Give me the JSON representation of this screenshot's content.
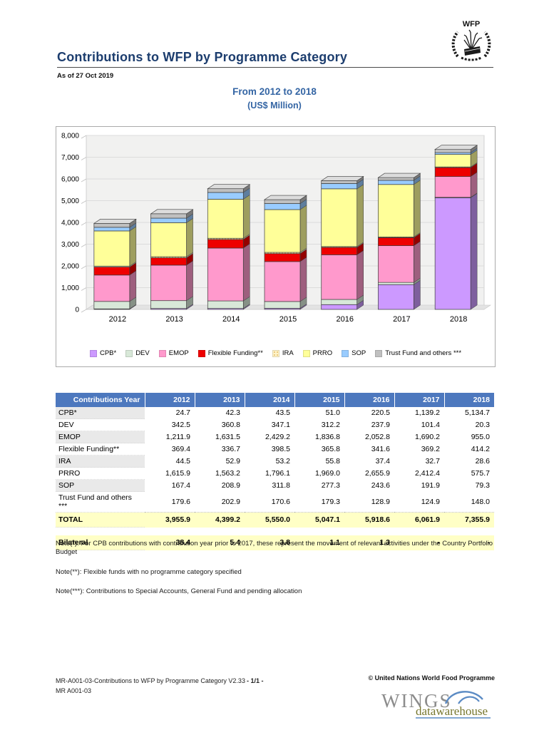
{
  "header": {
    "title": "Contributions to WFP by Programme Category",
    "as_of": "As of 27 Oct 2019",
    "subtitle_line1": "From 2012 to 2018",
    "subtitle_line2": "(US$ Million)",
    "logo_text": "WFP"
  },
  "chart_data": {
    "type": "bar",
    "stacked": true,
    "title": "Contributions to WFP by Programme Category, From 2012 to 2018 (US$ Million)",
    "categories": [
      "2012",
      "2013",
      "2014",
      "2015",
      "2016",
      "2017",
      "2018"
    ],
    "series": [
      {
        "name": "CPB*",
        "color": "#CC99FF",
        "values": [
          24.7,
          42.3,
          43.5,
          51.0,
          220.5,
          1139.2,
          5134.7
        ]
      },
      {
        "name": "DEV",
        "color": "#D8E8D8",
        "values": [
          342.5,
          360.8,
          347.1,
          312.2,
          237.9,
          101.4,
          20.3
        ]
      },
      {
        "name": "EMOP",
        "color": "#FF99CC",
        "values": [
          1211.9,
          1631.5,
          2429.2,
          1836.8,
          2052.8,
          1690.2,
          955.0
        ]
      },
      {
        "name": "Flexible Funding**",
        "color": "#EE0000",
        "values": [
          369.4,
          336.7,
          398.5,
          365.8,
          341.6,
          369.2,
          414.2
        ]
      },
      {
        "name": "IRA",
        "color": "#FFF3C8",
        "pattern": "dots",
        "values": [
          44.5,
          52.9,
          53.2,
          55.8,
          37.4,
          32.7,
          28.6
        ]
      },
      {
        "name": "PRRO",
        "color": "#FFFF99",
        "values": [
          1615.9,
          1563.2,
          1796.1,
          1969.0,
          2655.9,
          2412.4,
          575.7
        ]
      },
      {
        "name": "SOP",
        "color": "#99CCFF",
        "values": [
          167.4,
          208.9,
          311.8,
          277.3,
          243.6,
          191.9,
          79.3
        ]
      },
      {
        "name": "Trust Fund and others ***",
        "color": "#C0C0C0",
        "values": [
          179.6,
          202.9,
          170.6,
          179.3,
          128.9,
          124.9,
          148.0
        ]
      }
    ],
    "xlabel": "",
    "ylabel": "",
    "ylim": [
      0,
      8000
    ],
    "ytick_step": 1000,
    "grid": true,
    "legend_position": "bottom"
  },
  "table": {
    "header_label": "Contributions Year",
    "years": [
      "2012",
      "2013",
      "2014",
      "2015",
      "2016",
      "2017",
      "2018"
    ],
    "rows": [
      {
        "label": "CPB*",
        "values": [
          "24.7",
          "42.3",
          "43.5",
          "51.0",
          "220.5",
          "1,139.2",
          "5,134.7"
        ]
      },
      {
        "label": "DEV",
        "values": [
          "342.5",
          "360.8",
          "347.1",
          "312.2",
          "237.9",
          "101.4",
          "20.3"
        ]
      },
      {
        "label": "EMOP",
        "values": [
          "1,211.9",
          "1,631.5",
          "2,429.2",
          "1,836.8",
          "2,052.8",
          "1,690.2",
          "955.0"
        ]
      },
      {
        "label": "Flexible Funding**",
        "values": [
          "369.4",
          "336.7",
          "398.5",
          "365.8",
          "341.6",
          "369.2",
          "414.2"
        ]
      },
      {
        "label": "IRA",
        "values": [
          "44.5",
          "52.9",
          "53.2",
          "55.8",
          "37.4",
          "32.7",
          "28.6"
        ]
      },
      {
        "label": "PRRO",
        "values": [
          "1,615.9",
          "1,563.2",
          "1,796.1",
          "1,969.0",
          "2,655.9",
          "2,412.4",
          "575.7"
        ]
      },
      {
        "label": "SOP",
        "values": [
          "167.4",
          "208.9",
          "311.8",
          "277.3",
          "243.6",
          "191.9",
          "79.3"
        ]
      },
      {
        "label": "Trust Fund and others ***",
        "values": [
          "179.6",
          "202.9",
          "170.6",
          "179.3",
          "128.9",
          "124.9",
          "148.0"
        ]
      }
    ],
    "total": {
      "label": "TOTAL",
      "values": [
        "3,955.9",
        "4,399.2",
        "5,550.0",
        "5,047.1",
        "5,918.6",
        "6,061.9",
        "7,355.9"
      ]
    },
    "bilateral": {
      "label": "Bilateral",
      "values": [
        "38.4",
        "5.4",
        "3.8",
        "1.1",
        "1.3",
        "-",
        "-"
      ]
    }
  },
  "notes": [
    "Note(*): For CPB contributions with contribution year prior to 2017, these represent the movement of relevant activities under the Country Portfolio Budget",
    "Note(**): Flexible funds with no programme category specified",
    "Note(***): Contributions to Special Accounts, General Fund and pending allocation"
  ],
  "footer": {
    "doc_ref_line1": "MR-A001-03-Contributions to WFP by Programme Category V2.33",
    "doc_ref_line2": "MR A001-03",
    "page": "- 1/1 -",
    "copyright": "© United Nations World Food Programme",
    "wings_text": "WINGS",
    "wings_sub": "datawarehouse"
  },
  "colors": {
    "header_blue": "#4D78BE",
    "title_navy": "#1C3D6E",
    "subtitle_blue": "#3465A4",
    "total_row_bg": "#FFFFC6",
    "plot_bg": "#F1F1F0"
  }
}
